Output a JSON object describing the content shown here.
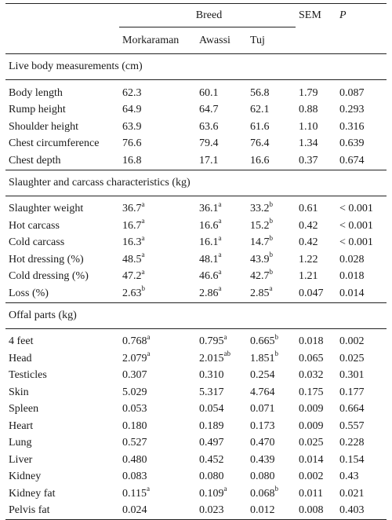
{
  "header": {
    "group_label": "Breed",
    "breeds": [
      "Morkaraman",
      "Awassi",
      "Tuj"
    ],
    "sem_label": "SEM",
    "p_label": "P"
  },
  "sections": [
    {
      "title": "Live body measurements (cm)",
      "rows": [
        {
          "label": "Body length",
          "values": [
            {
              "v": "62.3",
              "s": ""
            },
            {
              "v": "60.1",
              "s": ""
            },
            {
              "v": "56.8",
              "s": ""
            }
          ],
          "sem": "1.79",
          "p": "0.087"
        },
        {
          "label": "Rump height",
          "values": [
            {
              "v": "64.9",
              "s": ""
            },
            {
              "v": "64.7",
              "s": ""
            },
            {
              "v": "62.1",
              "s": ""
            }
          ],
          "sem": "0.88",
          "p": "0.293"
        },
        {
          "label": "Shoulder height",
          "values": [
            {
              "v": "63.9",
              "s": ""
            },
            {
              "v": "63.6",
              "s": ""
            },
            {
              "v": "61.6",
              "s": ""
            }
          ],
          "sem": "1.10",
          "p": "0.316"
        },
        {
          "label": "Chest circumference",
          "values": [
            {
              "v": "76.6",
              "s": ""
            },
            {
              "v": "79.4",
              "s": ""
            },
            {
              "v": "76.4",
              "s": ""
            }
          ],
          "sem": "1.34",
          "p": "0.639"
        },
        {
          "label": "Chest depth",
          "values": [
            {
              "v": "16.8",
              "s": ""
            },
            {
              "v": "17.1",
              "s": ""
            },
            {
              "v": "16.6",
              "s": ""
            }
          ],
          "sem": "0.37",
          "p": "0.674"
        }
      ]
    },
    {
      "title": "Slaughter and carcass characteristics (kg)",
      "rows": [
        {
          "label": "Slaughter weight",
          "values": [
            {
              "v": "36.7",
              "s": "a"
            },
            {
              "v": "36.1",
              "s": "a"
            },
            {
              "v": "33.2",
              "s": "b"
            }
          ],
          "sem": "0.61",
          "p": "< 0.001"
        },
        {
          "label": "Hot carcass",
          "values": [
            {
              "v": "16.7",
              "s": "a"
            },
            {
              "v": "16.6",
              "s": "a"
            },
            {
              "v": "15.2",
              "s": "b"
            }
          ],
          "sem": "0.42",
          "p": "< 0.001"
        },
        {
          "label": "Cold carcass",
          "values": [
            {
              "v": "16.3",
              "s": "a"
            },
            {
              "v": "16.1",
              "s": "a"
            },
            {
              "v": "14.7",
              "s": "b"
            }
          ],
          "sem": "0.42",
          "p": "< 0.001"
        },
        {
          "label": "Hot dressing (%)",
          "values": [
            {
              "v": "48.5",
              "s": "a"
            },
            {
              "v": "48.1",
              "s": "a"
            },
            {
              "v": "43.9",
              "s": "b"
            }
          ],
          "sem": "1.22",
          "p": "0.028"
        },
        {
          "label": "Cold dressing (%)",
          "values": [
            {
              "v": "47.2",
              "s": "a"
            },
            {
              "v": "46.6",
              "s": "a"
            },
            {
              "v": "42.7",
              "s": "b"
            }
          ],
          "sem": "1.21",
          "p": "0.018"
        },
        {
          "label": "Loss (%)",
          "values": [
            {
              "v": "2.63",
              "s": "b"
            },
            {
              "v": "2.86",
              "s": "a"
            },
            {
              "v": "2.85",
              "s": "a"
            }
          ],
          "sem": "0.047",
          "p": "0.014"
        }
      ]
    },
    {
      "title": "Offal parts (kg)",
      "rows": [
        {
          "label": "4 feet",
          "values": [
            {
              "v": "0.768",
              "s": "a"
            },
            {
              "v": "0.795",
              "s": "a"
            },
            {
              "v": "0.665",
              "s": "b"
            }
          ],
          "sem": "0.018",
          "p": "0.002"
        },
        {
          "label": "Head",
          "values": [
            {
              "v": "2.079",
              "s": "a"
            },
            {
              "v": "2.015",
              "s": "ab"
            },
            {
              "v": "1.851",
              "s": "b"
            }
          ],
          "sem": "0.065",
          "p": "0.025"
        },
        {
          "label": "Testicles",
          "values": [
            {
              "v": "0.307",
              "s": ""
            },
            {
              "v": "0.310",
              "s": ""
            },
            {
              "v": "0.254",
              "s": ""
            }
          ],
          "sem": "0.032",
          "p": "0.301"
        },
        {
          "label": "Skin",
          "values": [
            {
              "v": "5.029",
              "s": ""
            },
            {
              "v": "5.317",
              "s": ""
            },
            {
              "v": "4.764",
              "s": ""
            }
          ],
          "sem": "0.175",
          "p": "0.177"
        },
        {
          "label": "Spleen",
          "values": [
            {
              "v": "0.053",
              "s": ""
            },
            {
              "v": "0.054",
              "s": ""
            },
            {
              "v": "0.071",
              "s": ""
            }
          ],
          "sem": "0.009",
          "p": "0.664"
        },
        {
          "label": "Heart",
          "values": [
            {
              "v": "0.180",
              "s": ""
            },
            {
              "v": "0.189",
              "s": ""
            },
            {
              "v": "0.173",
              "s": ""
            }
          ],
          "sem": "0.009",
          "p": "0.557"
        },
        {
          "label": "Lung",
          "values": [
            {
              "v": "0.527",
              "s": ""
            },
            {
              "v": "0.497",
              "s": ""
            },
            {
              "v": "0.470",
              "s": ""
            }
          ],
          "sem": "0.025",
          "p": "0.228"
        },
        {
          "label": "Liver",
          "values": [
            {
              "v": "0.480",
              "s": ""
            },
            {
              "v": "0.452",
              "s": ""
            },
            {
              "v": "0.439",
              "s": ""
            }
          ],
          "sem": "0.014",
          "p": "0.154"
        },
        {
          "label": "Kidney",
          "values": [
            {
              "v": "0.083",
              "s": ""
            },
            {
              "v": "0.080",
              "s": ""
            },
            {
              "v": "0.080",
              "s": ""
            }
          ],
          "sem": "0.002",
          "p": "0.43"
        },
        {
          "label": "Kidney fat",
          "values": [
            {
              "v": "0.115",
              "s": "a"
            },
            {
              "v": "0.109",
              "s": "a"
            },
            {
              "v": "0.068",
              "s": "b"
            }
          ],
          "sem": "0.011",
          "p": "0.021"
        },
        {
          "label": "Pelvis fat",
          "values": [
            {
              "v": "0.024",
              "s": ""
            },
            {
              "v": "0.023",
              "s": ""
            },
            {
              "v": "0.012",
              "s": ""
            }
          ],
          "sem": "0.008",
          "p": "0.403"
        }
      ]
    }
  ]
}
